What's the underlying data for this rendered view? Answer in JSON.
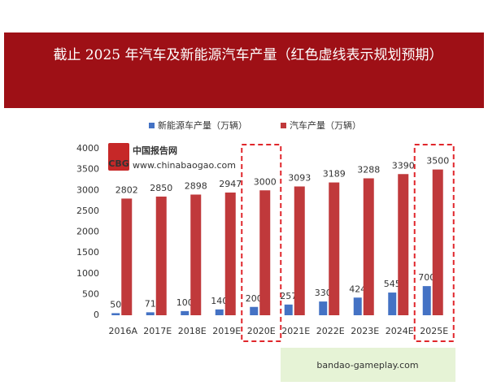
{
  "chart_data": {
    "type": "bar",
    "title": "截止 2025 年汽车及新能源汽车产量（红色虚线表示规划预期）",
    "categories": [
      "2016A",
      "2017E",
      "2018E",
      "2019E",
      "2020E",
      "2021E",
      "2022E",
      "2023E",
      "2024E",
      "2025E"
    ],
    "series": [
      {
        "name": "新能源车产量（万辆）",
        "color": "#4472c4",
        "values": [
          50,
          71,
          100,
          140,
          200,
          257,
          330,
          424,
          545,
          700
        ]
      },
      {
        "name": "汽车产量（万辆）",
        "color": "#c0393b",
        "values": [
          2802,
          2850,
          2898,
          2947,
          3000,
          3093,
          3189,
          3288,
          3390,
          3500
        ]
      }
    ],
    "ylim": [
      0,
      4000
    ],
    "yticks": [
      0,
      500,
      1000,
      1500,
      2000,
      2500,
      3000,
      3500,
      4000
    ],
    "grid": false,
    "highlight": [
      "2020E",
      "2025E"
    ],
    "highlight_color": "#e0262b",
    "logo": {
      "name": "中国报告网",
      "url": "www.chinabaogao.com",
      "badge": "CBG"
    },
    "watermark": "bandao-gameplay.com"
  }
}
